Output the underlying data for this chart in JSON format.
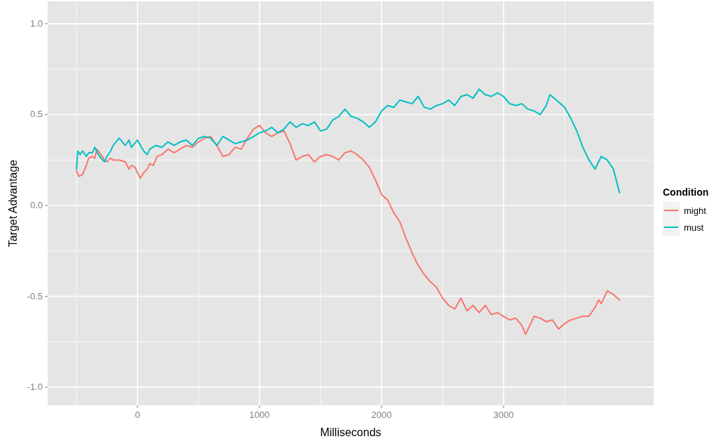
{
  "chart_data": {
    "type": "line",
    "xlabel": "Milliseconds",
    "ylabel": "Target Advantage",
    "legend_title": "Condition",
    "legend": "right",
    "grid": true,
    "xlim": [
      -736,
      4230
    ],
    "ylim": [
      -1.1,
      1.123
    ],
    "xticks": [
      {
        "value": -500,
        "label": null
      },
      0,
      {
        "value": 500,
        "label": null
      },
      1000,
      {
        "value": 1500,
        "label": null
      },
      2000,
      {
        "value": 2500,
        "label": null
      },
      3000,
      {
        "value": 3500,
        "label": null
      }
    ],
    "yticks": [
      {
        "value": -1,
        "label": "-1.0"
      },
      {
        "value": -0.75,
        "label": null
      },
      {
        "value": -0.5,
        "label": "-0.5"
      },
      {
        "value": -0.25,
        "label": null
      },
      {
        "value": 0,
        "label": "0.0"
      },
      {
        "value": 0.25,
        "label": null
      },
      {
        "value": 0.5,
        "label": "0.5"
      },
      {
        "value": 0.75,
        "label": null
      },
      {
        "value": 1,
        "label": "1.0"
      }
    ],
    "series": [
      {
        "name": "might",
        "color": "#f8766d",
        "x": [
          -500,
          -480,
          -450,
          -420,
          -400,
          -370,
          -350,
          -333,
          -300,
          -270,
          -250,
          -220,
          -200,
          -150,
          -100,
          -70,
          -50,
          -20,
          0,
          23,
          50,
          80,
          100,
          130,
          160,
          200,
          250,
          300,
          350,
          400,
          450,
          500,
          550,
          600,
          650,
          700,
          750,
          800,
          850,
          900,
          950,
          1000,
          1050,
          1100,
          1150,
          1200,
          1250,
          1300,
          1350,
          1400,
          1450,
          1500,
          1550,
          1600,
          1650,
          1700,
          1750,
          1800,
          1850,
          1900,
          1950,
          2000,
          2050,
          2100,
          2150,
          2200,
          2250,
          2300,
          2350,
          2400,
          2450,
          2500,
          2550,
          2600,
          2650,
          2700,
          2750,
          2800,
          2850,
          2900,
          2950,
          3000,
          3050,
          3100,
          3150,
          3180,
          3250,
          3300,
          3350,
          3400,
          3450,
          3500,
          3550,
          3600,
          3650,
          3700,
          3750,
          3780,
          3800,
          3850,
          3900,
          3950
        ],
        "values": [
          0.19,
          0.16,
          0.17,
          0.22,
          0.26,
          0.27,
          0.26,
          0.31,
          0.28,
          0.25,
          0.24,
          0.26,
          0.25,
          0.25,
          0.24,
          0.2,
          0.22,
          0.21,
          0.18,
          0.15,
          0.18,
          0.2,
          0.23,
          0.22,
          0.27,
          0.28,
          0.31,
          0.29,
          0.31,
          0.33,
          0.32,
          0.35,
          0.37,
          0.38,
          0.33,
          0.27,
          0.28,
          0.32,
          0.31,
          0.37,
          0.42,
          0.44,
          0.4,
          0.38,
          0.4,
          0.41,
          0.34,
          0.25,
          0.27,
          0.28,
          0.24,
          0.27,
          0.28,
          0.27,
          0.25,
          0.29,
          0.3,
          0.28,
          0.25,
          0.21,
          0.14,
          0.06,
          0.03,
          -0.04,
          -0.09,
          -0.18,
          -0.26,
          -0.33,
          -0.38,
          -0.42,
          -0.45,
          -0.51,
          -0.55,
          -0.57,
          -0.51,
          -0.58,
          -0.55,
          -0.59,
          -0.55,
          -0.6,
          -0.59,
          -0.61,
          -0.63,
          -0.62,
          -0.66,
          -0.71,
          -0.61,
          -0.62,
          -0.64,
          -0.63,
          -0.68,
          -0.65,
          -0.63,
          -0.62,
          -0.61,
          -0.61,
          -0.56,
          -0.52,
          -0.54,
          -0.47,
          -0.49,
          -0.52
        ]
      },
      {
        "name": "must",
        "color": "#00bfc4",
        "x": [
          -500,
          -490,
          -470,
          -450,
          -420,
          -400,
          -370,
          -350,
          -320,
          -300,
          -270,
          -250,
          -220,
          -200,
          -150,
          -100,
          -70,
          -50,
          0,
          50,
          80,
          100,
          150,
          200,
          250,
          300,
          350,
          400,
          450,
          500,
          550,
          600,
          650,
          700,
          750,
          800,
          850,
          900,
          950,
          1000,
          1050,
          1100,
          1150,
          1200,
          1250,
          1300,
          1350,
          1400,
          1450,
          1500,
          1550,
          1600,
          1650,
          1700,
          1750,
          1800,
          1850,
          1900,
          1950,
          2000,
          2050,
          2100,
          2150,
          2200,
          2250,
          2300,
          2350,
          2400,
          2450,
          2500,
          2550,
          2600,
          2650,
          2700,
          2750,
          2800,
          2850,
          2900,
          2950,
          3000,
          3050,
          3100,
          3150,
          3200,
          3250,
          3300,
          3350,
          3380,
          3450,
          3500,
          3550,
          3600,
          3650,
          3700,
          3750,
          3800,
          3850,
          3900,
          3950
        ],
        "values": [
          0.2,
          0.3,
          0.28,
          0.3,
          0.27,
          0.29,
          0.29,
          0.32,
          0.28,
          0.26,
          0.24,
          0.27,
          0.3,
          0.33,
          0.37,
          0.33,
          0.36,
          0.32,
          0.36,
          0.3,
          0.28,
          0.31,
          0.33,
          0.32,
          0.35,
          0.33,
          0.35,
          0.36,
          0.33,
          0.37,
          0.38,
          0.37,
          0.33,
          0.38,
          0.36,
          0.34,
          0.35,
          0.36,
          0.38,
          0.4,
          0.41,
          0.43,
          0.4,
          0.42,
          0.46,
          0.43,
          0.45,
          0.44,
          0.46,
          0.41,
          0.42,
          0.47,
          0.49,
          0.53,
          0.49,
          0.48,
          0.46,
          0.43,
          0.46,
          0.52,
          0.55,
          0.54,
          0.58,
          0.57,
          0.56,
          0.6,
          0.54,
          0.53,
          0.55,
          0.56,
          0.58,
          0.55,
          0.6,
          0.61,
          0.59,
          0.64,
          0.61,
          0.6,
          0.62,
          0.6,
          0.56,
          0.55,
          0.56,
          0.53,
          0.52,
          0.5,
          0.55,
          0.61,
          0.57,
          0.54,
          0.48,
          0.41,
          0.32,
          0.25,
          0.2,
          0.27,
          0.25,
          0.2,
          0.07
        ]
      }
    ]
  }
}
